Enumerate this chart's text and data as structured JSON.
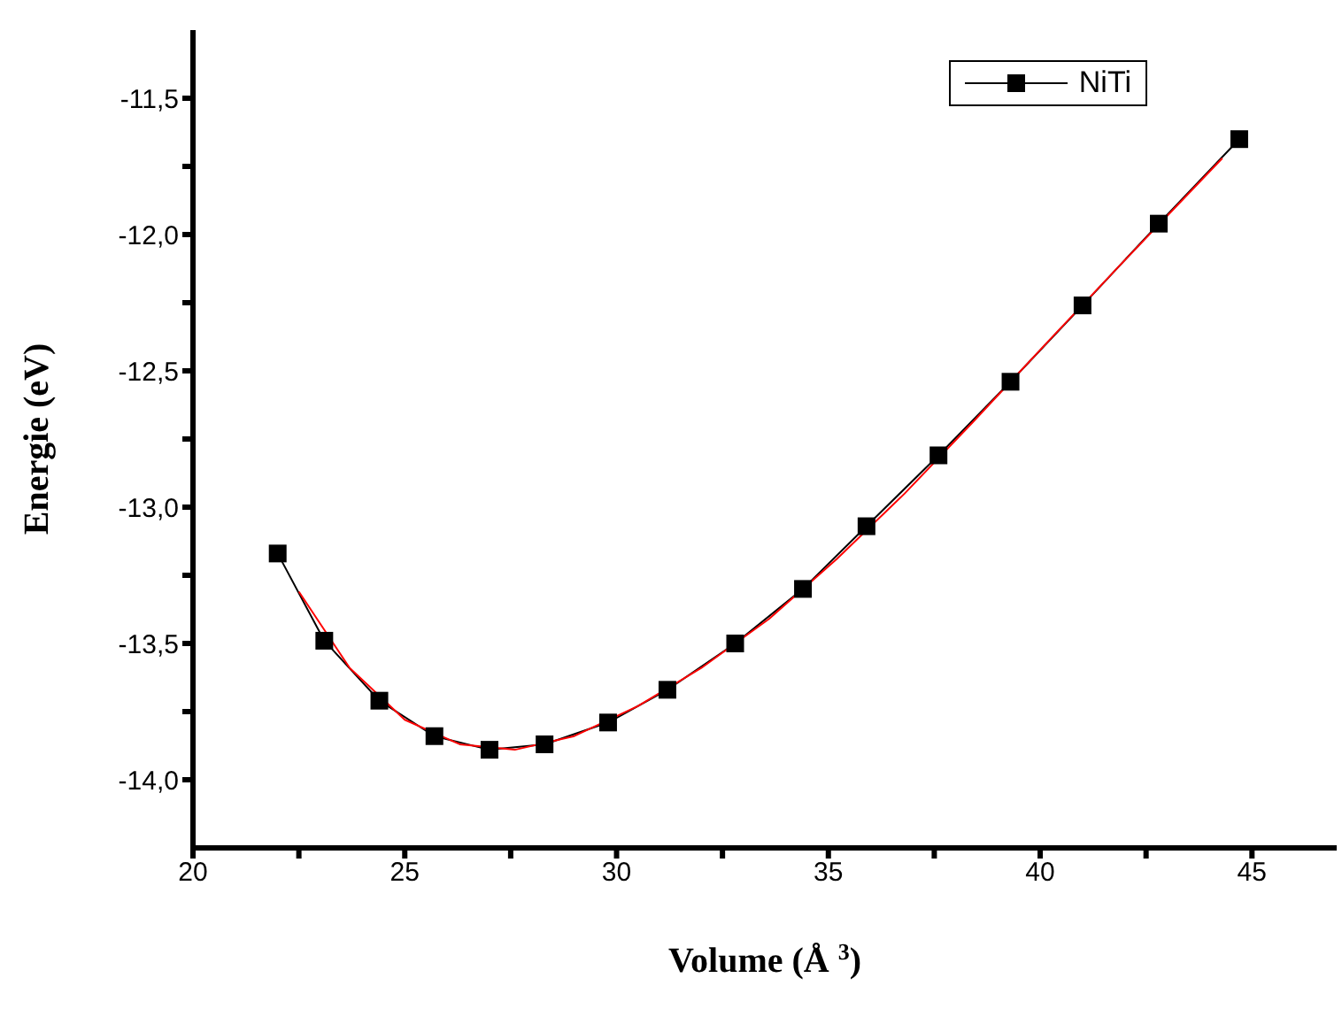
{
  "chart_data": {
    "type": "line",
    "xlabel": "Volume (Å $^{3}$)",
    "ylabel": "Energie (eV)",
    "xlim": [
      20,
      47
    ],
    "xticks": [
      20,
      {
        "value": 22.5,
        "label": null
      },
      25,
      {
        "value": 27.5,
        "label": null
      },
      30,
      {
        "value": 32.5,
        "label": null
      },
      35,
      {
        "value": 37.5,
        "label": null
      },
      40,
      {
        "value": 42.5,
        "label": null
      },
      45
    ],
    "ylim": [
      -14.25,
      -11.25
    ],
    "yticks": [
      {
        "value": -14.0,
        "label": "-14,0"
      },
      {
        "value": -13.75,
        "label": null
      },
      {
        "value": -13.5,
        "label": "-13,5"
      },
      {
        "value": -13.25,
        "label": null
      },
      {
        "value": -13.0,
        "label": "-13,0"
      },
      {
        "value": -12.75,
        "label": null
      },
      {
        "value": -12.5,
        "label": "-12,5"
      },
      {
        "value": -12.25,
        "label": null
      },
      {
        "value": -12.0,
        "label": "-12,0"
      },
      {
        "value": -11.75,
        "label": null
      },
      {
        "value": -11.5,
        "label": "-11,5"
      }
    ],
    "legend": "top right",
    "marker": "square",
    "line_style": "solid",
    "series": [
      {
        "name": "NiTi",
        "color": "#000000",
        "x": [
          22.0,
          23.1,
          24.4,
          25.7,
          27.0,
          28.3,
          29.8,
          31.2,
          32.8,
          34.4,
          35.9,
          37.6,
          39.3,
          41.0,
          42.8,
          44.7
        ],
        "values": [
          -13.17,
          -13.49,
          -13.71,
          -13.84,
          -13.89,
          -13.87,
          -13.79,
          -13.67,
          -13.5,
          -13.3,
          -13.07,
          -12.81,
          -12.54,
          -12.26,
          -11.96,
          -11.65
        ]
      },
      {
        "type": "line",
        "marker": "none",
        "color": "#ff0000",
        "x": [
          22.5,
          23.7,
          25.0,
          26.3,
          27.6,
          29.0,
          30.5,
          32.0,
          33.6,
          35.2,
          36.8,
          38.4,
          40.2,
          41.9,
          44.3
        ],
        "values": [
          -13.31,
          -13.59,
          -13.78,
          -13.87,
          -13.89,
          -13.84,
          -13.73,
          -13.59,
          -13.41,
          -13.19,
          -12.95,
          -12.69,
          -12.39,
          -12.11,
          -11.72
        ]
      }
    ]
  }
}
